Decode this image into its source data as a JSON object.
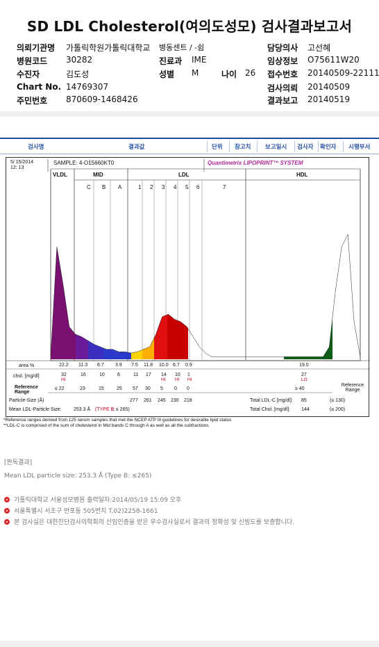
{
  "title": "SD LDL Cholesterol(여의도성모) 검사결과보고서",
  "info": {
    "left": [
      {
        "label": "의뢰기관명",
        "value": "가톨릭학원가톨릭대학교"
      },
      {
        "label": "병원코드",
        "value": "30282"
      },
      {
        "label": "수진자",
        "value": "김도성"
      },
      {
        "label": "Chart No.",
        "value": "14769307"
      },
      {
        "label": "주민번호",
        "value": "870609-1468426"
      }
    ],
    "mid": [
      {
        "label": "병동센트 / -쉼",
        "value": ""
      },
      {
        "label": "진료과",
        "value": "IME"
      },
      {
        "label": "성별",
        "value": "M"
      }
    ],
    "age": {
      "label": "나이",
      "value": "26"
    },
    "right": [
      {
        "label": "담당의사",
        "value": "고선혜"
      },
      {
        "label": "임상정보",
        "value": "O75611W20"
      },
      {
        "label": "접수번호",
        "value": "20140509-22111"
      },
      {
        "label": "검사의뢰",
        "value": "20140509"
      },
      {
        "label": "결과보고",
        "value": "20140519"
      }
    ]
  },
  "table_header": [
    "검사명",
    "결과값",
    "단위",
    "참고치",
    "보고일시",
    "검사자",
    "확인자",
    "시행부서"
  ],
  "report": {
    "date": "5/ 15/2014",
    "time": "12: 13",
    "sample": "SAMPLE:   4-O15660KT0",
    "brand": "Quantimetrix LIPOPRINT™ SYSTEM",
    "sections": [
      "VLDL",
      "MID",
      "LDL",
      "HDL"
    ],
    "mid_bands": [
      "C",
      "B",
      "A"
    ],
    "ldl_bands": [
      "1",
      "2",
      "3",
      "4",
      "5",
      "6",
      "7"
    ],
    "row_labels": {
      "area": "area %",
      "chol": "chol. [mg/dl]",
      "ref": "Reference Range",
      "particle": "Particle-Size (Å)",
      "mean": "Mean LDL-Particle Size:",
      "mean_val": "253.3 Å",
      "mean_type": "(TYPE B",
      "mean_type2": "; ≤ 265)",
      "total_ldl": "Total LDL-C [mg/dl]:",
      "total_ldl_val": "85",
      "total_ldl_ref": "(≤ 130)",
      "total_chol": "Total Chol. [mg/dl]:",
      "total_chol_val": "144",
      "total_chol_ref": "(≤ 200)",
      "ref_range_right": "Reference Range"
    },
    "area": [
      "22.2",
      "11.3",
      "6.7",
      "3.9",
      "7.5",
      "11.8",
      "10.0",
      "6.7",
      "0.9",
      "19.0"
    ],
    "chol": [
      "32",
      "16",
      "10",
      "6",
      "11",
      "17",
      "14",
      "10",
      "1",
      "27"
    ],
    "flags": [
      {
        "col": 0,
        "text": "HI"
      },
      {
        "col": 6,
        "text": "HI"
      },
      {
        "col": 7,
        "text": "HI"
      },
      {
        "col": 8,
        "text": "HI"
      },
      {
        "col": 9,
        "text": "LO"
      }
    ],
    "ref": [
      "≤ 22",
      "23",
      "15",
      "25",
      "57",
      "30",
      "5",
      "0",
      "0",
      "≥ 40"
    ],
    "particle": [
      "277",
      "261",
      "245",
      "230",
      "218"
    ],
    "notes": [
      "*Reference ranges derived from 125 serum samples that met the NCEP ATP III guidelines for desirable lipid status",
      "**LDL-C is comprised of the sum of cholesterol in Mid bands C through A as well as all the subfractions"
    ]
  },
  "chart_data": {
    "type": "area",
    "title": "",
    "xlabel": "",
    "ylabel": "",
    "note": "densitometric scan; relative intensity 0-1",
    "x": [
      0,
      2,
      4,
      6,
      8,
      10,
      12,
      14,
      16,
      18,
      20,
      22,
      24,
      26,
      28,
      30,
      32,
      34,
      36,
      38,
      40,
      42,
      44,
      46,
      48,
      50,
      52,
      54,
      56,
      58,
      60,
      62,
      64,
      66,
      68,
      70,
      72,
      74,
      76,
      78,
      80,
      82,
      84,
      86,
      88,
      90,
      92,
      94,
      96,
      98,
      100
    ],
    "series": [
      {
        "values": [
          0.02,
          0.9,
          0.6,
          0.26,
          0.2,
          0.18,
          0.15,
          0.12,
          0.1,
          0.08,
          0.08,
          0.06,
          0.06,
          0.05,
          0.06,
          0.08,
          0.1,
          0.2,
          0.34,
          0.36,
          0.32,
          0.3,
          0.26,
          0.18,
          0.1,
          0.05,
          0.02,
          0.02,
          0.02,
          0.02,
          0.02,
          0.02,
          0.02,
          0.02,
          0.02,
          0.02,
          0.02,
          0.02,
          0.02,
          0.02,
          0.02,
          0.02,
          0.02,
          0.02,
          0.02,
          0.1,
          0.55,
          0.9,
          1.0,
          0.3,
          0.02
        ]
      }
    ],
    "ylim": [
      0,
      1
    ]
  },
  "footer": {
    "section": "[판독결과]",
    "mean_text": "Mean LDL particle size: 253.3 Å (Type B: ≤265)",
    "lines": [
      "가톨릭대학교 서울성모병원       출력일자:2014/05/19 15:09 오후",
      "서울특별시 서초구 반포동 505번지 T.02)2258-1661",
      "본 검사실은 대한진단검사의학회의 신임인증을 받은 우수검사실로서 결과의 정확성 및 신빙도를 보증합니다."
    ]
  },
  "colors": {
    "vldl": "#7a1070",
    "mid": "#2b39c8",
    "ldl_yellow": "#ffd400",
    "ldl_red": "#e01010",
    "hdl": "#0d5c18",
    "accent": "#1c4fa3",
    "flag": "#c0001a"
  }
}
